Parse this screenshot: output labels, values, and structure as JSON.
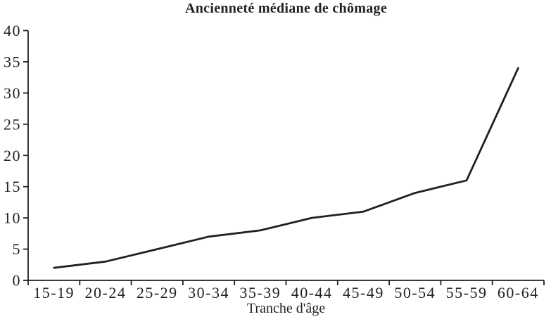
{
  "chart_data": {
    "type": "line",
    "title": "Ancienneté médiane de chômage",
    "xlabel": "Tranche d'âge",
    "ylabel": "",
    "categories": [
      "15-19",
      "20-24",
      "25-29",
      "30-34",
      "35-39",
      "40-44",
      "45-49",
      "50-54",
      "55-59",
      "60-64"
    ],
    "values": [
      2,
      3,
      5,
      7,
      8,
      10,
      11,
      14,
      16,
      34
    ],
    "ylim": [
      0,
      40
    ],
    "ytick_step": 5,
    "yticks": [
      0,
      5,
      10,
      15,
      20,
      25,
      30,
      35,
      40
    ],
    "grid": false,
    "legend_position": "none",
    "line_color": "#231f20",
    "axis_color": "#231f20",
    "text_color": "#231f20",
    "background_color": "#ffffff"
  }
}
